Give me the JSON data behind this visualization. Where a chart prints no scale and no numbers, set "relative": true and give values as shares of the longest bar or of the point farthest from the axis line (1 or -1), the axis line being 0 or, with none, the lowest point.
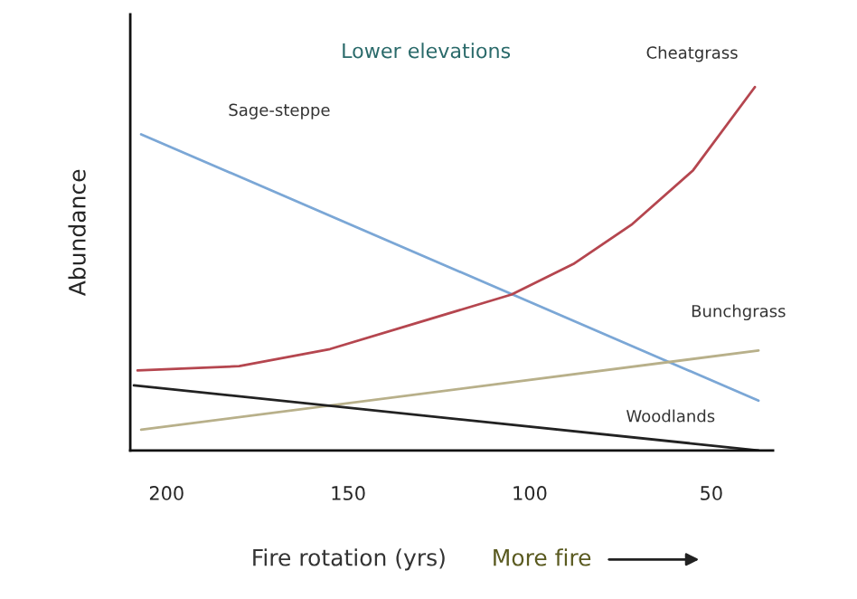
{
  "chart_data": {
    "type": "line",
    "title": "Lower elevations",
    "xlabel": "Fire rotation (yrs)",
    "ylabel": "Abundance",
    "relative": true,
    "xlim": [
      210,
      33
    ],
    "xticks": [
      200,
      150,
      100,
      50
    ],
    "annotations": [
      "More fire"
    ],
    "series": [
      {
        "name": "Sage-steppe",
        "color": "#7ba7d6",
        "x": [
          207,
          37
        ],
        "values": [
          0.87,
          0.137
        ]
      },
      {
        "name": "Cheatgrass",
        "color": "#b5464f",
        "x": [
          208,
          180,
          155,
          130,
          105,
          88,
          72,
          55,
          38
        ],
        "values": [
          0.22,
          0.232,
          0.279,
          0.354,
          0.429,
          0.513,
          0.621,
          0.771,
          1
        ]
      },
      {
        "name": "Bunchgrass",
        "color": "#b8b08a",
        "x": [
          207,
          37
        ],
        "values": [
          0.057,
          0.275
        ]
      },
      {
        "name": "Woodlands",
        "color": "#222222",
        "x": [
          209,
          37
        ],
        "values": [
          0.179,
          0
        ]
      }
    ],
    "grid": false,
    "legend": false
  }
}
